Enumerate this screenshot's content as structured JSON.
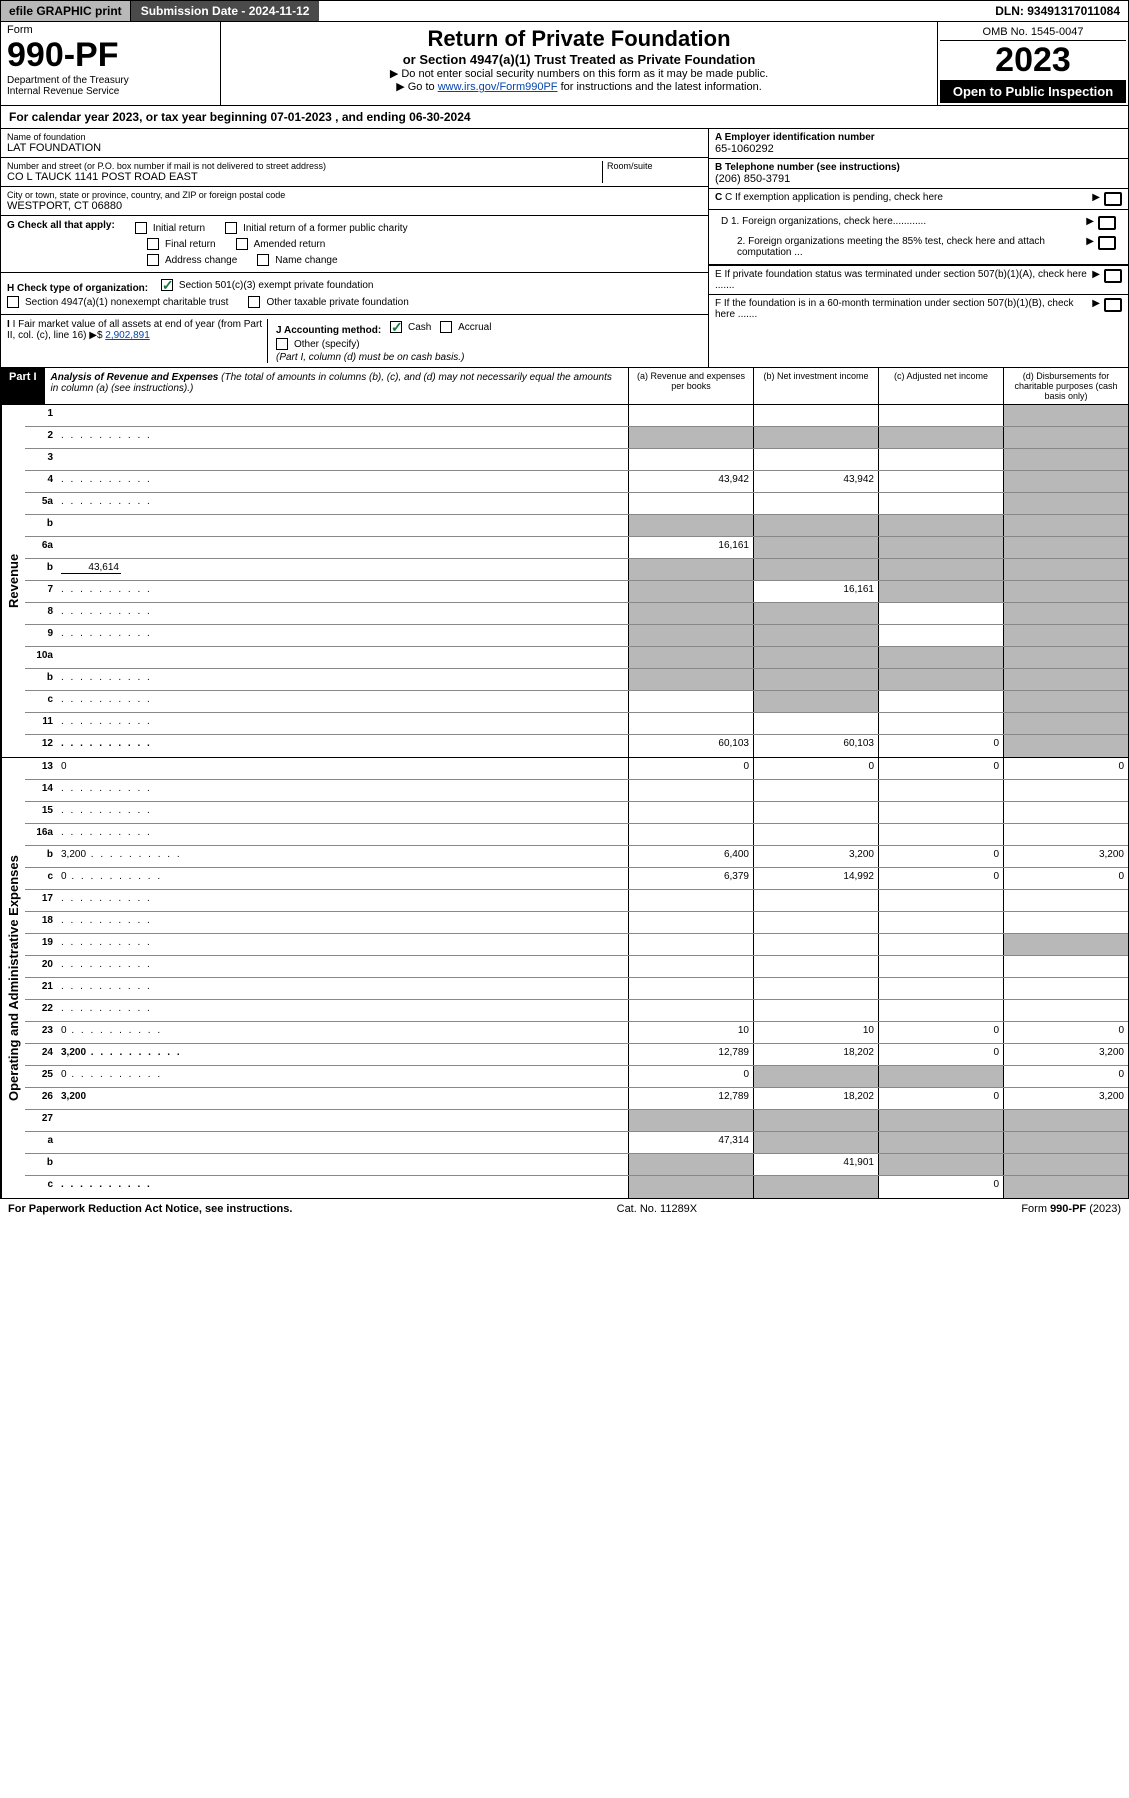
{
  "topbar": {
    "efile": "efile GRAPHIC print",
    "submission": "Submission Date - 2024-11-12",
    "dln": "DLN: 93491317011084"
  },
  "header": {
    "form_label": "Form",
    "form_no": "990-PF",
    "dept1": "Department of the Treasury",
    "dept2": "Internal Revenue Service",
    "title": "Return of Private Foundation",
    "subtitle": "or Section 4947(a)(1) Trust Treated as Private Foundation",
    "note1": "▶ Do not enter social security numbers on this form as it may be made public.",
    "note2_pre": "▶ Go to ",
    "note2_link": "www.irs.gov/Form990PF",
    "note2_post": " for instructions and the latest information.",
    "omb": "OMB No. 1545-0047",
    "year": "2023",
    "open": "Open to Public Inspection"
  },
  "calyear": "For calendar year 2023, or tax year beginning 07-01-2023                          , and ending 06-30-2024",
  "info": {
    "name_lbl": "Name of foundation",
    "name": "LAT FOUNDATION",
    "addr_lbl": "Number and street (or P.O. box number if mail is not delivered to street address)",
    "room_lbl": "Room/suite",
    "addr": "CO L TAUCK 1141 POST ROAD EAST",
    "city_lbl": "City or town, state or province, country, and ZIP or foreign postal code",
    "city": "WESTPORT, CT  06880",
    "a_lbl": "A Employer identification number",
    "a_val": "65-1060292",
    "b_lbl": "B Telephone number (see instructions)",
    "b_val": "(206) 850-3791",
    "c_lbl": "C If exemption application is pending, check here",
    "d1": "D 1. Foreign organizations, check here............",
    "d2": "2. Foreign organizations meeting the 85% test, check here and attach computation ...",
    "e_lbl": "E  If private foundation status was terminated under section 507(b)(1)(A), check here .......",
    "f_lbl": "F  If the foundation is in a 60-month termination under section 507(b)(1)(B), check here .......",
    "g_lbl": "G Check all that apply:",
    "g_opts": [
      "Initial return",
      "Initial return of a former public charity",
      "Final return",
      "Amended return",
      "Address change",
      "Name change"
    ],
    "h_lbl": "H Check type of organization:",
    "h1": "Section 501(c)(3) exempt private foundation",
    "h2": "Section 4947(a)(1) nonexempt charitable trust",
    "h3": "Other taxable private foundation",
    "i_lbl": "I Fair market value of all assets at end of year (from Part II, col. (c), line 16)",
    "i_val": "2,902,891",
    "j_lbl": "J Accounting method:",
    "j_cash": "Cash",
    "j_accrual": "Accrual",
    "j_other": "Other (specify)",
    "j_note": "(Part I, column (d) must be on cash basis.)"
  },
  "part1": {
    "label": "Part I",
    "title": "Analysis of Revenue and Expenses",
    "note": "(The total of amounts in columns (b), (c), and (d) may not necessarily equal the amounts in column (a) (see instructions).)",
    "col_a": "(a)    Revenue and expenses per books",
    "col_b": "(b)    Net investment income",
    "col_c": "(c)    Adjusted net income",
    "col_d": "(d)    Disbursements for charitable purposes (cash basis only)"
  },
  "side_labels": {
    "rev": "Revenue",
    "exp": "Operating and Administrative Expenses"
  },
  "rows": [
    {
      "n": "1",
      "d": "",
      "a": "",
      "b": "",
      "c": "",
      "shade": [
        "d"
      ]
    },
    {
      "n": "2",
      "d": "",
      "a": "",
      "b": "",
      "c": "",
      "shade": [
        "a",
        "b",
        "c",
        "d"
      ],
      "dots": true
    },
    {
      "n": "3",
      "d": "",
      "a": "",
      "b": "",
      "c": "",
      "shade": [
        "d"
      ]
    },
    {
      "n": "4",
      "d": "",
      "a": "43,942",
      "b": "43,942",
      "c": "",
      "shade": [
        "d"
      ],
      "dots": true
    },
    {
      "n": "5a",
      "d": "",
      "a": "",
      "b": "",
      "c": "",
      "shade": [
        "d"
      ],
      "dots": true
    },
    {
      "n": "b",
      "d": "",
      "a": "",
      "b": "",
      "c": "",
      "shade": [
        "a",
        "b",
        "c",
        "d"
      ]
    },
    {
      "n": "6a",
      "d": "",
      "a": "16,161",
      "b": "",
      "c": "",
      "shade": [
        "b",
        "c",
        "d"
      ]
    },
    {
      "n": "b",
      "d": "",
      "inline": "43,614",
      "a": "",
      "b": "",
      "c": "",
      "shade": [
        "a",
        "b",
        "c",
        "d"
      ]
    },
    {
      "n": "7",
      "d": "",
      "a": "",
      "b": "16,161",
      "c": "",
      "shade": [
        "a",
        "c",
        "d"
      ],
      "dots": true
    },
    {
      "n": "8",
      "d": "",
      "a": "",
      "b": "",
      "c": "",
      "shade": [
        "a",
        "b",
        "d"
      ],
      "dots": true
    },
    {
      "n": "9",
      "d": "",
      "a": "",
      "b": "",
      "c": "",
      "shade": [
        "a",
        "b",
        "d"
      ],
      "dots": true
    },
    {
      "n": "10a",
      "d": "",
      "a": "",
      "b": "",
      "c": "",
      "shade": [
        "a",
        "b",
        "c",
        "d"
      ]
    },
    {
      "n": "b",
      "d": "",
      "a": "",
      "b": "",
      "c": "",
      "shade": [
        "a",
        "b",
        "c",
        "d"
      ],
      "dots": true
    },
    {
      "n": "c",
      "d": "",
      "a": "",
      "b": "",
      "c": "",
      "shade": [
        "b",
        "d"
      ],
      "dots": true
    },
    {
      "n": "11",
      "d": "",
      "a": "",
      "b": "",
      "c": "",
      "shade": [
        "d"
      ],
      "dots": true
    },
    {
      "n": "12",
      "d": "",
      "a": "60,103",
      "b": "60,103",
      "c": "0",
      "shade": [
        "d"
      ],
      "bold": true,
      "dots": true
    }
  ],
  "exp_rows": [
    {
      "n": "13",
      "d": "0",
      "a": "0",
      "b": "0",
      "c": "0"
    },
    {
      "n": "14",
      "d": "",
      "a": "",
      "b": "",
      "c": "",
      "dots": true
    },
    {
      "n": "15",
      "d": "",
      "a": "",
      "b": "",
      "c": "",
      "dots": true
    },
    {
      "n": "16a",
      "d": "",
      "a": "",
      "b": "",
      "c": "",
      "dots": true
    },
    {
      "n": "b",
      "d": "3,200",
      "a": "6,400",
      "b": "3,200",
      "c": "0",
      "dots": true
    },
    {
      "n": "c",
      "d": "0",
      "a": "6,379",
      "b": "14,992",
      "c": "0",
      "dots": true
    },
    {
      "n": "17",
      "d": "",
      "a": "",
      "b": "",
      "c": "",
      "dots": true
    },
    {
      "n": "18",
      "d": "",
      "a": "",
      "b": "",
      "c": "",
      "dots": true
    },
    {
      "n": "19",
      "d": "",
      "a": "",
      "b": "",
      "c": "",
      "shade": [
        "d"
      ],
      "dots": true
    },
    {
      "n": "20",
      "d": "",
      "a": "",
      "b": "",
      "c": "",
      "dots": true
    },
    {
      "n": "21",
      "d": "",
      "a": "",
      "b": "",
      "c": "",
      "dots": true
    },
    {
      "n": "22",
      "d": "",
      "a": "",
      "b": "",
      "c": "",
      "dots": true
    },
    {
      "n": "23",
      "d": "0",
      "a": "10",
      "b": "10",
      "c": "0",
      "dots": true
    },
    {
      "n": "24",
      "d": "3,200",
      "a": "12,789",
      "b": "18,202",
      "c": "0",
      "bold": true,
      "dots": true
    },
    {
      "n": "25",
      "d": "0",
      "a": "0",
      "b": "",
      "c": "",
      "shade": [
        "b",
        "c"
      ],
      "dots": true
    },
    {
      "n": "26",
      "d": "3,200",
      "a": "12,789",
      "b": "18,202",
      "c": "0",
      "bold": true
    },
    {
      "n": "27",
      "d": "",
      "a": "",
      "b": "",
      "c": "",
      "shade": [
        "a",
        "b",
        "c",
        "d"
      ]
    },
    {
      "n": "a",
      "d": "",
      "a": "47,314",
      "b": "",
      "c": "",
      "shade": [
        "b",
        "c",
        "d"
      ],
      "bold": true
    },
    {
      "n": "b",
      "d": "",
      "a": "",
      "b": "41,901",
      "c": "",
      "shade": [
        "a",
        "c",
        "d"
      ],
      "bold": true
    },
    {
      "n": "c",
      "d": "",
      "a": "",
      "b": "",
      "c": "0",
      "shade": [
        "a",
        "b",
        "d"
      ],
      "bold": true,
      "dots": true
    }
  ],
  "footer": {
    "left": "For Paperwork Reduction Act Notice, see instructions.",
    "mid": "Cat. No. 11289X",
    "right": "Form 990-PF (2023)"
  }
}
